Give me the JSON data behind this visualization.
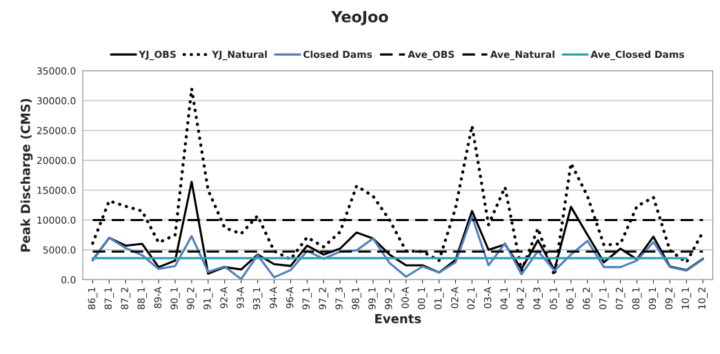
{
  "chart_data": {
    "type": "line",
    "title": "YeoJoo",
    "xlabel": "Events",
    "ylabel": "Peak Discharge (CMS)",
    "categories": [
      "86_1",
      "87_1",
      "87_2",
      "88_1",
      "89-A",
      "90_1",
      "90_2",
      "91_1",
      "92-A",
      "93-A",
      "93_1",
      "94-A",
      "96-A",
      "97_1",
      "97_2",
      "97_3",
      "98_1",
      "99_1",
      "99_2",
      "00-A",
      "00_1",
      "01_1",
      "02-A",
      "02_1",
      "03-A",
      "04_1",
      "04_2",
      "04_3",
      "05_1",
      "06_1",
      "06_2",
      "07_1",
      "07_2",
      "08_1",
      "09_1",
      "09_2",
      "10_1",
      "10_2"
    ],
    "series": [
      {
        "name": "YJ_OBS",
        "color": "#000000",
        "line_style": "solid",
        "values": [
          3300,
          7000,
          5700,
          6000,
          2100,
          3200,
          16400,
          1000,
          2100,
          1700,
          4200,
          2600,
          2300,
          5700,
          4200,
          5200,
          7900,
          6900,
          4200,
          2400,
          2400,
          1200,
          3300,
          11500,
          5000,
          5900,
          1800,
          6600,
          1600,
          12200,
          7500,
          2900,
          5200,
          3400,
          7200,
          2200,
          1600,
          3500
        ]
      },
      {
        "name": "YJ_Natural",
        "color": "#000000",
        "line_style": "dotted",
        "values": [
          6100,
          13200,
          12300,
          11500,
          6200,
          7500,
          32000,
          15000,
          8700,
          7700,
          10700,
          4800,
          3400,
          7100,
          5500,
          8000,
          15700,
          14000,
          10000,
          4800,
          4700,
          3200,
          12000,
          25800,
          9200,
          15500,
          1500,
          8600,
          700,
          19500,
          14000,
          5800,
          6000,
          12300,
          13800,
          4900,
          2900,
          8000
        ]
      },
      {
        "name": "Closed Dams",
        "color": "#4f81bd",
        "line_style": "solid",
        "values": [
          3200,
          7000,
          5300,
          4100,
          1800,
          2300,
          7300,
          1300,
          2200,
          100,
          4100,
          400,
          1600,
          4800,
          3500,
          4700,
          4900,
          6900,
          2800,
          500,
          2200,
          1200,
          2900,
          10600,
          2400,
          6100,
          900,
          4800,
          1500,
          4200,
          6500,
          2100,
          2100,
          3200,
          6300,
          2100,
          1500,
          3400
        ]
      },
      {
        "name": "Ave_OBS",
        "color": "#000000",
        "line_style": "dashed",
        "values": [
          4700,
          4700,
          4700,
          4700,
          4700,
          4700,
          4700,
          4700,
          4700,
          4700,
          4700,
          4700,
          4700,
          4700,
          4700,
          4700,
          4700,
          4700,
          4700,
          4700,
          4700,
          4700,
          4700,
          4700,
          4700,
          4700,
          4700,
          4700,
          4700,
          4700,
          4700,
          4700,
          4700,
          4700,
          4700,
          4700,
          4700,
          4700
        ]
      },
      {
        "name": "Ave_Natural",
        "color": "#000000",
        "line_style": "dashed",
        "values": [
          10000,
          10000,
          10000,
          10000,
          10000,
          10000,
          10000,
          10000,
          10000,
          10000,
          10000,
          10000,
          10000,
          10000,
          10000,
          10000,
          10000,
          10000,
          10000,
          10000,
          10000,
          10000,
          10000,
          10000,
          10000,
          10000,
          10000,
          10000,
          10000,
          10000,
          10000,
          10000,
          10000,
          10000,
          10000,
          10000,
          10000,
          10000
        ]
      },
      {
        "name": "Ave_Closed Dams",
        "color": "#31a0b4",
        "line_style": "solid",
        "values": [
          3600,
          3600,
          3600,
          3600,
          3600,
          3600,
          3600,
          3600,
          3600,
          3600,
          3600,
          3600,
          3600,
          3600,
          3600,
          3600,
          3600,
          3600,
          3600,
          3600,
          3600,
          3600,
          3600,
          3600,
          3600,
          3600,
          3600,
          3600,
          3600,
          3600,
          3600,
          3600,
          3600,
          3600,
          3600,
          3600,
          3600,
          null
        ]
      }
    ],
    "ylim": [
      0,
      35000
    ],
    "yticks": [
      {
        "value": 0,
        "label": "0.0"
      },
      {
        "value": 5000,
        "label": "5000.0"
      },
      {
        "value": 10000,
        "label": "10000.0"
      },
      {
        "value": 15000,
        "label": "15000.0"
      },
      {
        "value": 20000,
        "label": "20000.0"
      },
      {
        "value": 25000,
        "label": "25000.0"
      },
      {
        "value": 30000,
        "label": "30000.0"
      },
      {
        "value": 35000,
        "label": "35000.0"
      }
    ],
    "grid": "y",
    "legend": "top",
    "marker": "none"
  }
}
